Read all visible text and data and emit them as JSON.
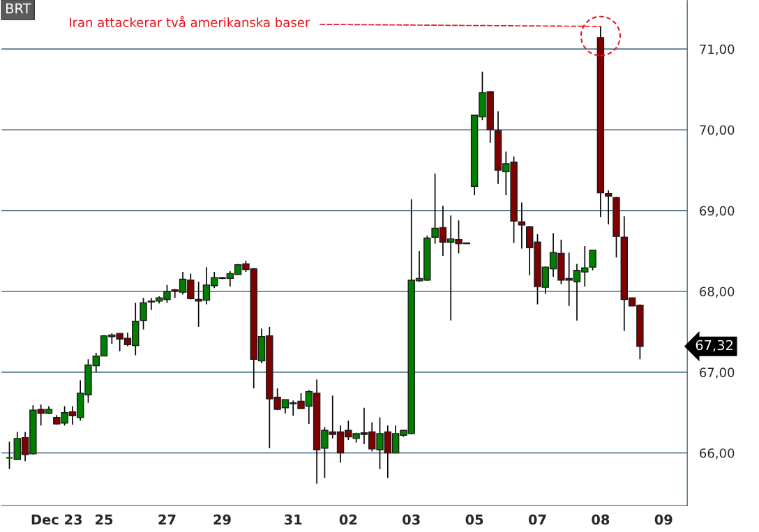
{
  "chart_data": {
    "type": "candlestick",
    "title": "BRT",
    "categories": [
      null,
      null,
      null,
      null,
      null,
      null,
      "Dec 23",
      null,
      null,
      null,
      null,
      null,
      "25",
      null,
      null,
      null,
      null,
      null,
      null,
      null,
      "27",
      null,
      null,
      null,
      null,
      null,
      null,
      "29",
      null,
      null,
      null,
      null,
      null,
      null,
      null,
      null,
      "31",
      null,
      null,
      null,
      null,
      null,
      null,
      "02",
      null,
      null,
      null,
      null,
      null,
      null,
      null,
      "03",
      null,
      null,
      null,
      null,
      null,
      null,
      null,
      "05",
      null,
      null,
      null,
      null,
      null,
      null,
      null,
      "07",
      null,
      null,
      null,
      null,
      null,
      null,
      null,
      "08",
      null,
      null,
      null,
      null,
      null,
      null,
      null,
      "09",
      null
    ],
    "ohlc": [
      [
        65.94,
        66.14,
        65.8,
        65.94
      ],
      [
        65.92,
        66.26,
        65.92,
        66.18
      ],
      [
        66.19,
        66.26,
        65.9,
        65.98
      ],
      [
        65.99,
        66.59,
        65.98,
        66.53
      ],
      [
        66.54,
        66.6,
        66.34,
        66.49
      ],
      [
        66.49,
        66.58,
        66.48,
        66.54
      ],
      [
        66.44,
        66.47,
        66.35,
        66.36
      ],
      [
        66.37,
        66.58,
        66.34,
        66.5
      ],
      [
        66.51,
        66.58,
        66.35,
        66.46
      ],
      [
        66.44,
        66.9,
        66.4,
        66.74
      ],
      [
        66.72,
        67.16,
        66.62,
        67.09
      ],
      [
        67.08,
        67.24,
        67.0,
        67.2
      ],
      [
        67.2,
        67.46,
        67.2,
        67.45
      ],
      [
        67.44,
        67.48,
        67.35,
        67.46
      ],
      [
        67.48,
        67.48,
        67.26,
        67.41
      ],
      [
        67.42,
        67.49,
        67.32,
        67.34
      ],
      [
        67.33,
        67.86,
        67.21,
        67.63
      ],
      [
        67.64,
        67.92,
        67.53,
        67.86
      ],
      [
        67.88,
        67.92,
        67.77,
        67.87
      ],
      [
        67.88,
        67.94,
        67.85,
        67.92
      ],
      [
        67.9,
        68.08,
        67.86,
        68.0
      ],
      [
        68.02,
        68.03,
        67.92,
        68.0
      ],
      [
        67.99,
        68.24,
        67.96,
        68.15
      ],
      [
        68.14,
        68.22,
        67.9,
        67.91
      ],
      [
        67.9,
        68.12,
        67.56,
        67.88
      ],
      [
        67.89,
        68.3,
        67.84,
        68.08
      ],
      [
        68.07,
        68.24,
        68.04,
        68.17
      ],
      [
        68.16,
        68.18,
        68.15,
        68.17
      ],
      [
        68.16,
        68.25,
        68.06,
        68.22
      ],
      [
        68.21,
        68.34,
        68.21,
        68.33
      ],
      [
        68.34,
        68.38,
        68.24,
        68.27
      ],
      [
        68.28,
        68.29,
        66.8,
        67.16
      ],
      [
        67.14,
        67.54,
        67.11,
        67.44
      ],
      [
        67.45,
        67.56,
        66.06,
        66.67
      ],
      [
        66.69,
        66.8,
        66.53,
        66.54
      ],
      [
        66.56,
        66.66,
        66.49,
        66.66
      ],
      [
        66.61,
        66.65,
        66.46,
        66.62
      ],
      [
        66.64,
        66.74,
        66.55,
        66.55
      ],
      [
        66.58,
        66.78,
        66.36,
        66.76
      ],
      [
        66.74,
        66.91,
        65.62,
        66.04
      ],
      [
        66.06,
        66.32,
        65.69,
        66.28
      ],
      [
        66.26,
        66.71,
        66.18,
        66.23
      ],
      [
        66.26,
        66.34,
        65.88,
        66.0
      ],
      [
        66.28,
        66.4,
        66.16,
        66.2
      ],
      [
        66.18,
        66.25,
        66.13,
        66.24
      ],
      [
        66.25,
        66.56,
        66.11,
        66.23
      ],
      [
        66.26,
        66.38,
        66.02,
        66.05
      ],
      [
        66.04,
        66.44,
        65.8,
        66.24
      ],
      [
        66.26,
        66.34,
        65.69,
        66.0
      ],
      [
        66.0,
        66.34,
        66.0,
        66.24
      ],
      [
        66.22,
        66.28,
        66.2,
        66.28
      ],
      [
        66.24,
        69.14,
        66.23,
        68.14
      ],
      [
        68.13,
        68.5,
        68.12,
        68.16
      ],
      [
        68.14,
        68.69,
        68.13,
        68.66
      ],
      [
        68.67,
        69.46,
        68.59,
        68.78
      ],
      [
        68.79,
        69.06,
        68.44,
        68.61
      ],
      [
        68.61,
        68.94,
        67.64,
        68.65
      ],
      [
        68.64,
        68.88,
        68.47,
        68.59
      ],
      [
        68.59,
        68.6,
        68.59,
        68.6
      ],
      [
        69.3,
        70.18,
        69.19,
        70.18
      ],
      [
        70.16,
        70.72,
        70.12,
        70.46
      ],
      [
        70.47,
        70.48,
        69.84,
        70.0
      ],
      [
        69.99,
        70.23,
        69.33,
        69.5
      ],
      [
        69.48,
        69.73,
        69.19,
        69.58
      ],
      [
        69.6,
        69.67,
        68.6,
        68.87
      ],
      [
        68.86,
        69.1,
        68.53,
        68.82
      ],
      [
        68.8,
        68.81,
        68.2,
        68.54
      ],
      [
        68.61,
        68.71,
        67.84,
        68.06
      ],
      [
        68.05,
        68.31,
        67.97,
        68.3
      ],
      [
        68.28,
        68.72,
        68.18,
        68.48
      ],
      [
        68.47,
        68.64,
        68.09,
        68.14
      ],
      [
        68.16,
        68.48,
        67.82,
        68.14
      ],
      [
        68.12,
        68.34,
        67.64,
        68.26
      ],
      [
        68.24,
        68.56,
        68.06,
        68.29
      ],
      [
        68.3,
        68.51,
        68.26,
        68.51
      ],
      [
        71.14,
        71.28,
        68.92,
        69.22
      ],
      [
        69.21,
        69.25,
        68.83,
        69.18
      ],
      [
        69.16,
        69.17,
        68.42,
        68.68
      ],
      [
        68.67,
        68.93,
        67.51,
        67.9
      ],
      [
        67.92,
        67.92,
        67.82,
        67.82
      ],
      [
        67.83,
        67.84,
        67.16,
        67.32
      ],
      null,
      null,
      null,
      null
    ],
    "colors": [
      "#006400",
      "#008000",
      "#800000",
      "#008000",
      "#800000",
      "#008000",
      "#800000",
      "#008000",
      "#800000",
      "#008000",
      "#008000",
      "#008000",
      "#008000",
      "#008000",
      "#800000",
      "#800000",
      "#008000",
      "#008000",
      "#800000",
      "#008000",
      "#008000",
      "#800000",
      "#008000",
      "#800000",
      "#800000",
      "#008000",
      "#008000",
      "#008000",
      "#008000",
      "#008000",
      "#800000",
      "#800000",
      "#008000",
      "#800000",
      "#800000",
      "#008000",
      "#008000",
      "#800000",
      "#008000",
      "#800000",
      "#008000",
      "#800000",
      "#800000",
      "#800000",
      "#008000",
      "#800000",
      "#800000",
      "#008000",
      "#800000",
      "#008000",
      "#008000",
      "#008000",
      "#008000",
      "#008000",
      "#008000",
      "#800000",
      "#008000",
      "#800000",
      "#008000",
      "#008000",
      "#008000",
      "#800000",
      "#800000",
      "#008000",
      "#800000",
      "#800000",
      "#800000",
      "#800000",
      "#008000",
      "#008000",
      "#800000",
      "#800000",
      "#008000",
      "#008000",
      "#008000",
      "#800000",
      "#800000",
      "#800000",
      "#800000",
      "#800000",
      "#800000",
      null,
      null,
      null,
      null
    ],
    "ylim": [
      65.35,
      71.6
    ],
    "yticks": [
      {
        "value": 66,
        "label": "66,00"
      },
      {
        "value": 67,
        "label": "67,00"
      },
      {
        "value": 68,
        "label": "68,00"
      },
      {
        "value": 69,
        "label": "69,00"
      },
      {
        "value": 70,
        "label": "70,00"
      },
      {
        "value": 71,
        "label": "71,00"
      }
    ],
    "grid": "y",
    "annotations": [
      {
        "text": "Iran attackerar två amerikanska baser",
        "x": "08",
        "y": 71.28
      },
      "67,32"
    ]
  }
}
